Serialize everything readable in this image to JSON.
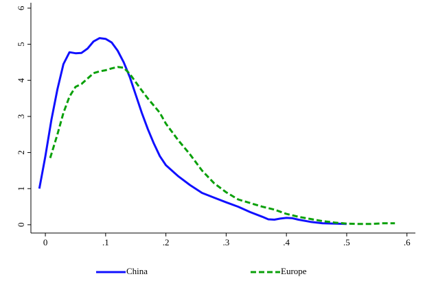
{
  "chart_data": {
    "type": "line",
    "xlim": [
      -0.024,
      0.614
    ],
    "xticks": [
      0,
      {
        "value": 0.1,
        "label": ".1"
      },
      {
        "value": 0.2,
        "label": ".2"
      },
      {
        "value": 0.3,
        "label": ".3"
      },
      {
        "value": 0.4,
        "label": ".4"
      },
      {
        "value": 0.5,
        "label": ".5"
      },
      {
        "value": 0.6,
        "label": ".6"
      }
    ],
    "ylim": [
      -0.23,
      6.15
    ],
    "yticks": [
      0,
      1,
      2,
      3,
      4,
      5,
      6
    ],
    "grid": false,
    "legend": "bottom",
    "series": [
      {
        "name": "China",
        "color": "#1010ff",
        "line_style": "solid",
        "x": [
          -0.01,
          0,
          0.01,
          0.02,
          0.03,
          0.04,
          0.05,
          0.06,
          0.07,
          0.08,
          0.09,
          0.1,
          0.11,
          0.12,
          0.13,
          0.14,
          0.15,
          0.16,
          0.17,
          0.18,
          0.19,
          0.2,
          0.22,
          0.24,
          0.26,
          0.28,
          0.3,
          0.32,
          0.34,
          0.36,
          0.37,
          0.38,
          0.39,
          0.4,
          0.41,
          0.42,
          0.44,
          0.46,
          0.48,
          0.5
        ],
        "values": [
          1.0,
          1.9,
          2.9,
          3.75,
          4.45,
          4.78,
          4.75,
          4.76,
          4.88,
          5.08,
          5.17,
          5.15,
          5.05,
          4.82,
          4.5,
          4.1,
          3.6,
          3.1,
          2.65,
          2.25,
          1.9,
          1.65,
          1.35,
          1.1,
          0.88,
          0.75,
          0.62,
          0.5,
          0.35,
          0.22,
          0.15,
          0.14,
          0.17,
          0.19,
          0.18,
          0.14,
          0.08,
          0.04,
          0.03,
          0.02
        ]
      },
      {
        "name": "Europe",
        "color": "#0aa00a",
        "line_style": "dashed",
        "x": [
          0.008,
          0.02,
          0.03,
          0.04,
          0.05,
          0.06,
          0.07,
          0.08,
          0.09,
          0.1,
          0.11,
          0.12,
          0.13,
          0.14,
          0.15,
          0.16,
          0.17,
          0.18,
          0.19,
          0.2,
          0.22,
          0.24,
          0.26,
          0.28,
          0.3,
          0.32,
          0.34,
          0.36,
          0.38,
          0.4,
          0.42,
          0.44,
          0.46,
          0.48,
          0.5,
          0.52,
          0.54,
          0.56,
          0.58
        ],
        "values": [
          1.85,
          2.5,
          3.1,
          3.55,
          3.82,
          3.9,
          4.05,
          4.2,
          4.25,
          4.28,
          4.33,
          4.37,
          4.35,
          4.18,
          3.95,
          3.72,
          3.5,
          3.3,
          3.1,
          2.8,
          2.35,
          1.95,
          1.5,
          1.15,
          0.9,
          0.7,
          0.6,
          0.5,
          0.42,
          0.3,
          0.22,
          0.16,
          0.1,
          0.06,
          0.03,
          0.02,
          0.02,
          0.04,
          0.04
        ]
      }
    ]
  }
}
